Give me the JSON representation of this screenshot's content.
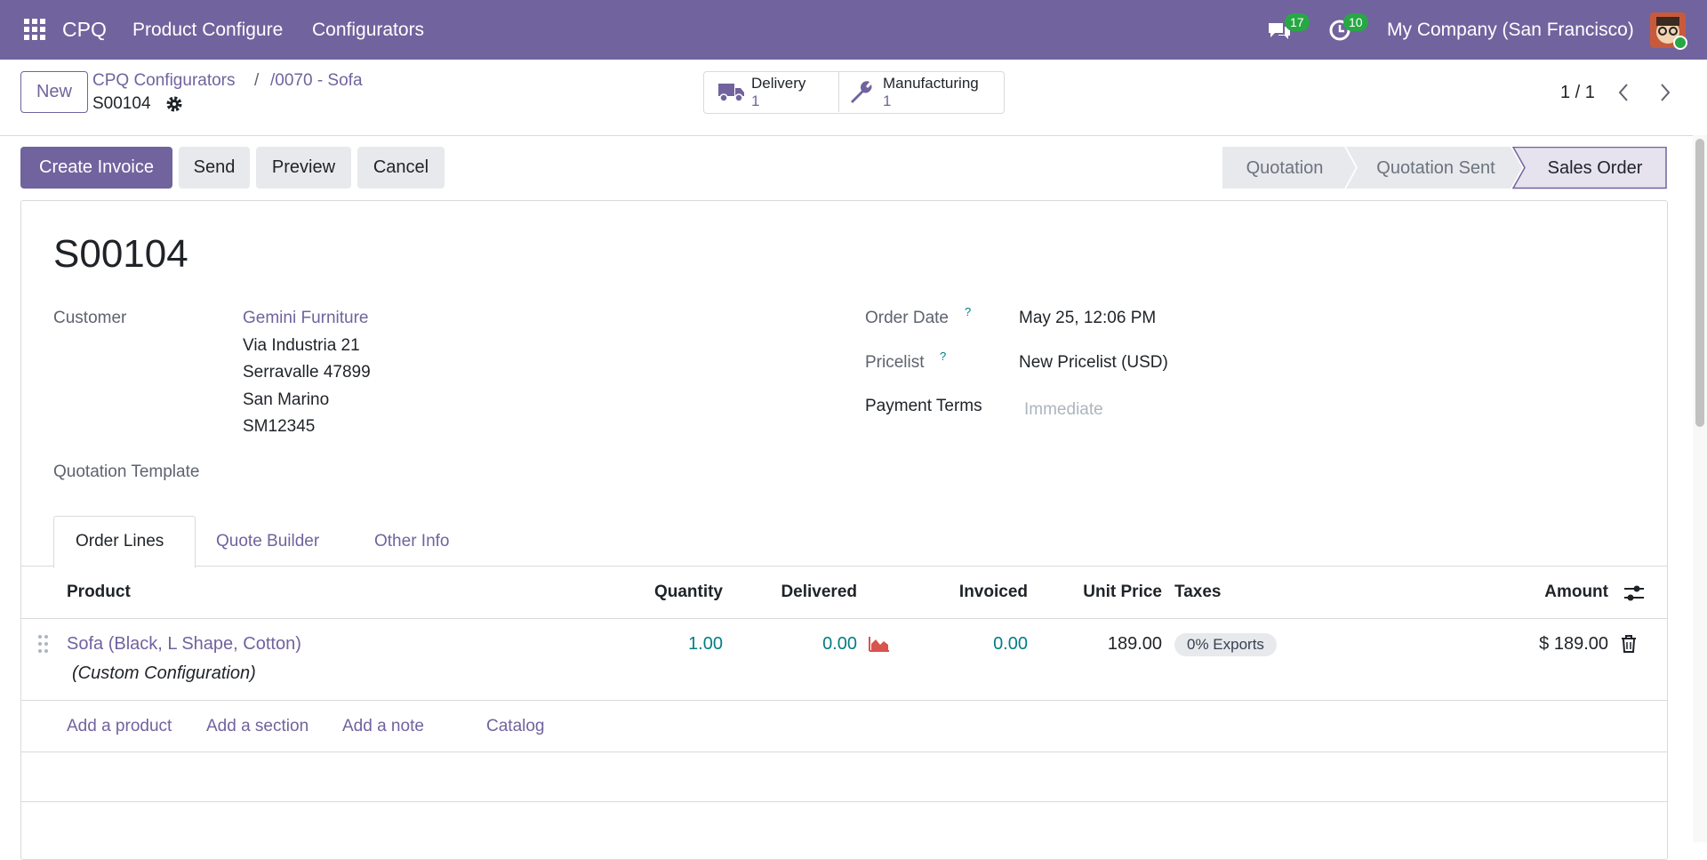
{
  "navbar": {
    "app": "CPQ",
    "menus": [
      "Product Configure",
      "Configurators"
    ],
    "messages_count": 17,
    "activities_count": 10,
    "company": "My Company (San Francisco)"
  },
  "control_panel": {
    "new_button": "New",
    "breadcrumbs": [
      "CPQ Configurators",
      "/0070 - Sofa"
    ],
    "breadcrumb_separator": "/",
    "record": "S00104",
    "smart_buttons": [
      {
        "label": "Delivery",
        "count": 1
      },
      {
        "label": "Manufacturing",
        "count": 1
      }
    ],
    "pager": "1 / 1"
  },
  "actions": {
    "buttons": [
      "Create Invoice",
      "Send",
      "Preview",
      "Cancel"
    ],
    "statuses": [
      "Quotation",
      "Quotation Sent",
      "Sales Order"
    ]
  },
  "form": {
    "title": "S00104",
    "customer_label": "Customer",
    "customer_name": "Gemini Furniture",
    "customer_address": [
      "Via Industria 21",
      "Serravalle 47899",
      "San Marino",
      "SM12345"
    ],
    "quotation_template_label": "Quotation Template",
    "order_date_label": "Order Date",
    "order_date": "May 25, 12:06 PM",
    "pricelist_label": "Pricelist",
    "pricelist": "New Pricelist (USD)",
    "help_mark": "?",
    "payment_terms_label": "Payment Terms",
    "payment_terms_placeholder": "Immediate"
  },
  "tabs": [
    "Order Lines",
    "Quote Builder",
    "Other Info"
  ],
  "table": {
    "columns": [
      "Product",
      "Quantity",
      "Delivered",
      "Invoiced",
      "Unit Price",
      "Taxes",
      "Amount"
    ],
    "rows": [
      {
        "product": "Sofa (Black, L Shape, Cotton)",
        "description": "(Custom Configuration)",
        "quantity": "1.00",
        "delivered": "0.00",
        "invoiced": "0.00",
        "unit_price": "189.00",
        "taxes": "0% Exports",
        "amount": "$ 189.00"
      }
    ],
    "add_links": [
      "Add a product",
      "Add a section",
      "Add a note",
      "Catalog"
    ]
  }
}
